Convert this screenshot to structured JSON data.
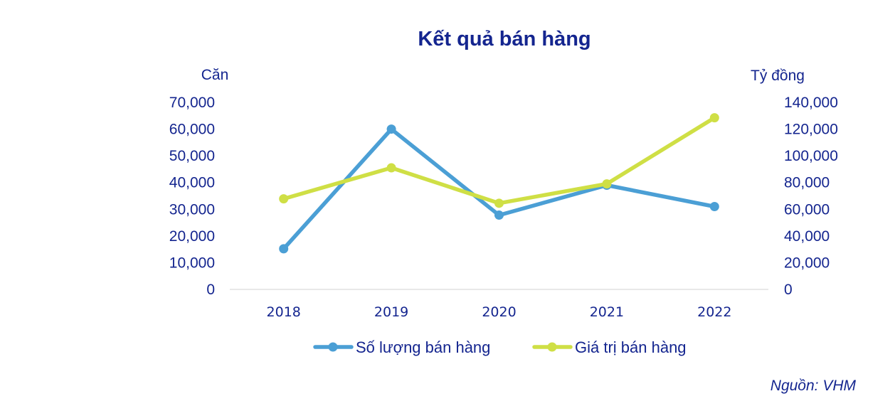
{
  "chart_data": {
    "type": "line",
    "title": "Kết quả bán hàng",
    "y_left_label": "Căn",
    "y_right_label": "Tỷ đồng",
    "x": [
      "2018",
      "2019",
      "2020",
      "2021",
      "2022"
    ],
    "y_left_ticks": [
      "0",
      "10,000",
      "20,000",
      "30,000",
      "40,000",
      "50,000",
      "60,000",
      "70,000"
    ],
    "y_right_ticks": [
      "0",
      "20,000",
      "40,000",
      "60,000",
      "80,000",
      "100,000",
      "120,000",
      "140,000"
    ],
    "y_left_range": [
      0,
      70000
    ],
    "y_right_range": [
      0,
      140000
    ],
    "grid": "none",
    "legend_position": "bottom",
    "series": [
      {
        "name": "Số lượng bán hàng",
        "axis": "left",
        "color": "#4b9fd5",
        "values": [
          15200,
          60000,
          27800,
          39000,
          31000
        ]
      },
      {
        "name": "Giá trị bán hàng",
        "axis": "right",
        "color": "#cfdf45",
        "values": [
          67800,
          91000,
          64500,
          79000,
          128500
        ]
      }
    ],
    "source": "Nguồn: VHM"
  }
}
